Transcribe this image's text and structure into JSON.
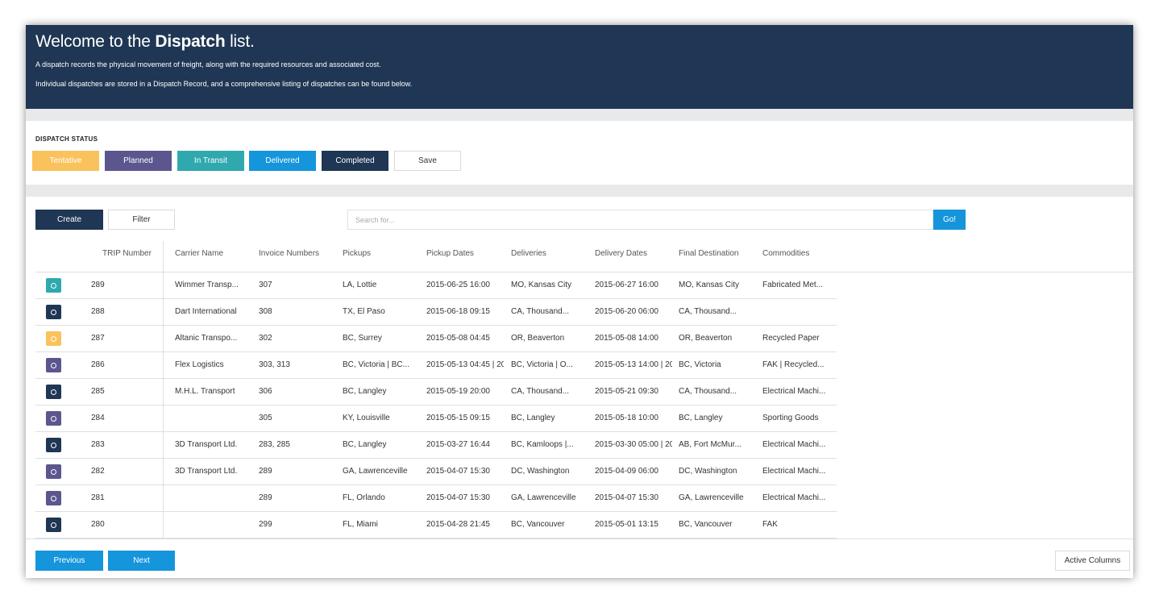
{
  "header": {
    "title_prefix": "Welcome to the ",
    "title_bold": "Dispatch",
    "title_suffix": " list.",
    "desc1": "A dispatch records the physical movement of freight, along with the required resources and associated cost.",
    "desc2": "Individual dispatches are stored in a Dispatch Record, and a comprehensive listing of dispatches can be found below."
  },
  "status": {
    "label": "DISPATCH STATUS",
    "buttons": [
      {
        "label": "Tentative",
        "color": "#f9c25d"
      },
      {
        "label": "Planned",
        "color": "#5b568e"
      },
      {
        "label": "In Transit",
        "color": "#2fa9ae"
      },
      {
        "label": "Delivered",
        "color": "#1595db"
      },
      {
        "label": "Completed",
        "color": "#1f3654"
      }
    ],
    "save_label": "Save"
  },
  "toolbar": {
    "create_label": "Create",
    "filter_label": "Filter",
    "search_placeholder": "Search for...",
    "go_label": "Go!"
  },
  "table": {
    "headers": [
      "TRIP Number",
      "Carrier Name",
      "Invoice Numbers",
      "Pickups",
      "Pickup Dates",
      "Deliveries",
      "Delivery Dates",
      "Final Destination",
      "Commodities"
    ],
    "rows": [
      {
        "status": "In Transit",
        "trip": "289",
        "carrier": "Wimmer Transp...",
        "invoice": "307",
        "pickups": "LA, Lottie",
        "pickup_dates": "2015-06-25 16:00",
        "deliveries": "MO, Kansas City",
        "delivery_dates": "2015-06-27 16:00",
        "destination": "MO, Kansas City",
        "commodities": "Fabricated Met..."
      },
      {
        "status": "Completed",
        "trip": "288",
        "carrier": "Dart International",
        "invoice": "308",
        "pickups": "TX, El Paso",
        "pickup_dates": "2015-06-18 09:15",
        "deliveries": "CA, Thousand...",
        "delivery_dates": "2015-06-20 06:00",
        "destination": "CA, Thousand...",
        "commodities": ""
      },
      {
        "status": "Tentative",
        "trip": "287",
        "carrier": "Altanic Transpo...",
        "invoice": "302",
        "pickups": "BC, Surrey",
        "pickup_dates": "2015-05-08 04:45",
        "deliveries": "OR, Beaverton",
        "delivery_dates": "2015-05-08 14:00",
        "destination": "OR, Beaverton",
        "commodities": "Recycled Paper"
      },
      {
        "status": "Planned",
        "trip": "286",
        "carrier": "Flex Logistics",
        "invoice": "303, 313",
        "pickups": "BC, Victoria | BC...",
        "pickup_dates": "2015-05-13 04:45 | 20",
        "deliveries": "BC, Victoria | O...",
        "delivery_dates": "2015-05-13 14:00 | 20",
        "destination": "BC, Victoria",
        "commodities": "FAK | Recycled..."
      },
      {
        "status": "Completed",
        "trip": "285",
        "carrier": "M.H.L. Transport",
        "invoice": "306",
        "pickups": "BC, Langley",
        "pickup_dates": "2015-05-19 20:00",
        "deliveries": "CA, Thousand...",
        "delivery_dates": "2015-05-21 09:30",
        "destination": "CA, Thousand...",
        "commodities": "Electrical Machi..."
      },
      {
        "status": "Planned",
        "trip": "284",
        "carrier": "",
        "invoice": "305",
        "pickups": "KY, Louisville",
        "pickup_dates": "2015-05-15 09:15",
        "deliveries": "BC, Langley",
        "delivery_dates": "2015-05-18 10:00",
        "destination": "BC, Langley",
        "commodities": "Sporting Goods"
      },
      {
        "status": "Completed",
        "trip": "283",
        "carrier": "3D Transport Ltd.",
        "invoice": "283, 285",
        "pickups": "BC, Langley",
        "pickup_dates": "2015-03-27 16:44",
        "deliveries": "BC, Kamloops |...",
        "delivery_dates": "2015-03-30 05:00 | 20",
        "destination": "AB, Fort McMur...",
        "commodities": "Electrical Machi..."
      },
      {
        "status": "Planned",
        "trip": "282",
        "carrier": "3D Transport Ltd.",
        "invoice": "289",
        "pickups": "GA, Lawrenceville",
        "pickup_dates": "2015-04-07 15:30",
        "deliveries": "DC, Washington",
        "delivery_dates": "2015-04-09 06:00",
        "destination": "DC, Washington",
        "commodities": "Electrical Machi..."
      },
      {
        "status": "Planned",
        "trip": "281",
        "carrier": "",
        "invoice": "289",
        "pickups": "FL, Orlando",
        "pickup_dates": "2015-04-07 15:30",
        "deliveries": "GA, Lawrenceville",
        "delivery_dates": "2015-04-07 15:30",
        "destination": "GA, Lawrenceville",
        "commodities": "Electrical Machi..."
      },
      {
        "status": "Completed",
        "trip": "280",
        "carrier": "",
        "invoice": "299",
        "pickups": "FL, Miami",
        "pickup_dates": "2015-04-28 21:45",
        "deliveries": "BC, Vancouver",
        "delivery_dates": "2015-05-01 13:15",
        "destination": "BC, Vancouver",
        "commodities": "FAK"
      }
    ]
  },
  "pagination": {
    "previous_label": "Previous",
    "next_label": "Next",
    "active_columns_label": "Active Columns"
  },
  "colors": {
    "navy": "#1f3654",
    "blue": "#1595db",
    "status_colors": {
      "Tentative": "#f9c25d",
      "Planned": "#5b568e",
      "In Transit": "#2fa9ae",
      "Delivered": "#1595db",
      "Completed": "#1f3654"
    }
  }
}
